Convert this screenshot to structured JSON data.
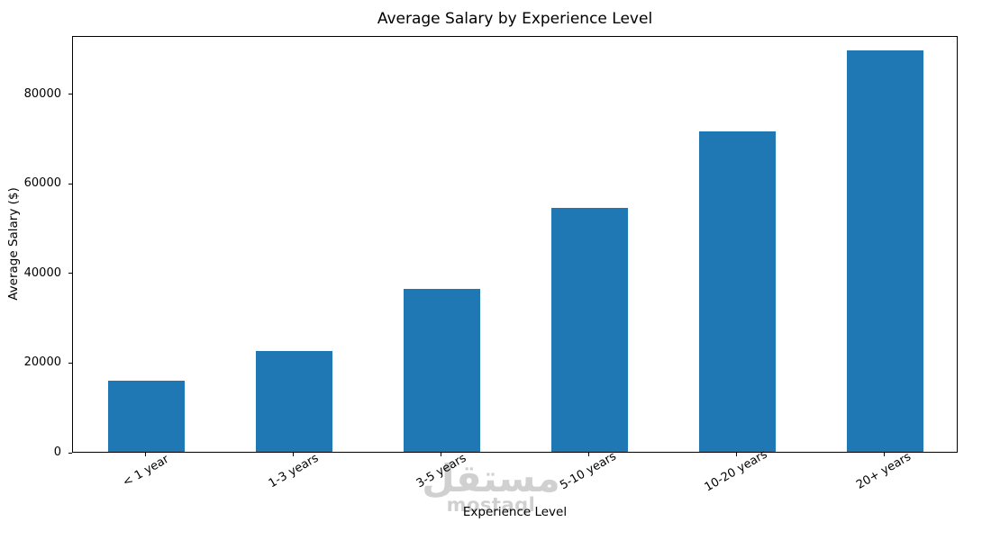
{
  "chart_data": {
    "type": "bar",
    "title": "Average Salary by Experience Level",
    "xlabel": "Experience Level",
    "ylabel": "Average Salary ($)",
    "categories": [
      "< 1 year",
      "1-3 years",
      "3-5 years",
      "5-10 years",
      "10-20 years",
      "20+ years"
    ],
    "values": [
      15800,
      22500,
      36300,
      54500,
      71500,
      89500
    ],
    "yticks": [
      0,
      20000,
      40000,
      60000,
      80000
    ],
    "ylim": [
      0,
      93000
    ],
    "bar_color": "#1f77b4",
    "grid": false,
    "legend": null,
    "x_tick_rotation": 30
  },
  "watermark": {
    "line1": "مستقل",
    "line2": "mostaql"
  }
}
